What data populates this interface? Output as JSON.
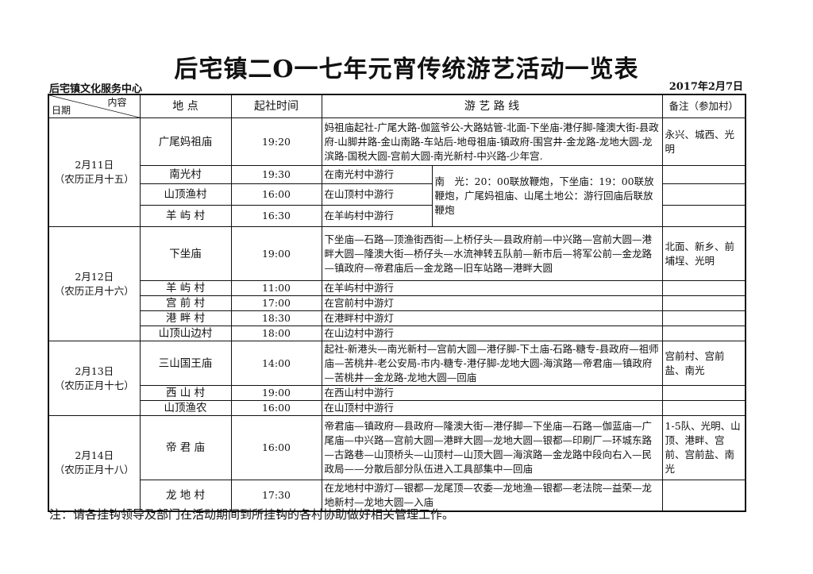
{
  "title": "后宅镇二O一七年元宵传统游艺活动一览表",
  "org": "后宅镇文化服务中心",
  "date": "2017年2月7日",
  "headers": {
    "content": "内容",
    "date": "日期",
    "place": "地 点",
    "time": "起社时间",
    "route": "游 艺 路 线",
    "remarks": "备注（参加村）"
  },
  "days": [
    {
      "date": "2月11日",
      "lunar": "（农历正月十五）",
      "rows": [
        {
          "place": "广尾妈祖庙",
          "time": "19:20",
          "route": "妈祖庙起社-广尾大路-伽篮爷公-大路姑管-北面-下坐庙-港仔脚-隆澳大街-县政府-山脚井路-金山南路-车站后-地母祖庙-镇政府-围宫井-金龙路-龙地大圆-龙滨路-国税大圆-宫前大圆-南光新村-中兴路-少年宫.",
          "remarks": "永兴、城西、光明"
        },
        {
          "place": "南光村",
          "time": "19:30",
          "route": "在南光村中游行",
          "remarks": ""
        },
        {
          "place": "山顶渔村",
          "time": "16:00",
          "route": "在山顶村中游行",
          "remarks": ""
        },
        {
          "place": "羊 屿 村",
          "time": "16:30",
          "route": "在羊屿村中游行",
          "remarks": ""
        }
      ],
      "merged_note": "南　光：20：00联放鞭炮，下坐庙：19：00联放鞭炮，广尾妈祖庙、山尾土地公：游行回庙后联放鞭炮"
    },
    {
      "date": "2月12日",
      "lunar": "（农历正月十六）",
      "rows": [
        {
          "place": "下坐庙",
          "time": "19:00",
          "route": "下坐庙—石路—顶渔街西街—上桥仔头—县政府前—中兴路—宫前大圆—港畔大圆—隆澳大街—桥仔头—水流神转五队前—新市后—将军公前—金龙路—镇政府—帝君庙后—金龙路—旧车站路—港畔大圆",
          "remarks": "北面、新乡、前埔埕、光明"
        },
        {
          "place": "羊 屿 村",
          "time": "11:00",
          "route": "在羊屿村中游行",
          "remarks": ""
        },
        {
          "place": "宫 前 村",
          "time": "17:00",
          "route": "在宫前村中游灯",
          "remarks": ""
        },
        {
          "place": "港 畔 村",
          "time": "18:30",
          "route": "在港畔村中游灯",
          "remarks": ""
        },
        {
          "place": "山顶山边村",
          "time": "18:00",
          "route": "在山边村中游行",
          "remarks": ""
        }
      ]
    },
    {
      "date": "2月13日",
      "lunar": "（农历正月十七）",
      "rows": [
        {
          "place": "三山国王庙",
          "time": "14:00",
          "route": "起社-新港头—南光新村—宫前大圆—港仔脚-下土庙-石路-糖专-县政府—祖师庙—苦桃井-老公安局-市内-糖专-港仔脚-龙地大圆-海滨路—帝君庙—镇政府—苦桃井—金龙路-龙地大圆—回庙",
          "remarks": "宫前村、宫前盐、南光"
        },
        {
          "place": "西 山 村",
          "time": "19:00",
          "route": "在西山村中游行",
          "remarks": ""
        },
        {
          "place": "山顶渔农",
          "time": "16:00",
          "route": "在山顶村中游行",
          "remarks": ""
        }
      ]
    },
    {
      "date": "2月14日",
      "lunar": "（农历正月十八）",
      "rows": [
        {
          "place": "帝 君 庙",
          "time": "16:00",
          "route": "帝君庙—镇政府—县政府—隆澳大街—港仔脚—下坐庙—石路—伽蓝庙—广尾庙—中兴路—宫前大圆—港畔大圆—龙地大圆—银都—印刷厂—环城东路—古路巷—山顶桥头—山顶村—山顶大圆—海滨路—金龙路中段向右入—民政局——分散后部分队伍进入工具部集中—回庙",
          "remarks": "1-5队、光明、山顶、港畔、宫前、宫前盐、南光"
        },
        {
          "place": "龙 地 村",
          "time": "17:30",
          "route": "在龙地村中游灯—银都—龙尾顶—农委—龙地渔—银都—老法院—益荣—龙地新村—龙地大圆—入庙",
          "remarks": ""
        }
      ]
    }
  ],
  "footer_note": "注：请各挂钩领导及部门在活动期间到所挂钩的各村协助做好相关管理工作。"
}
